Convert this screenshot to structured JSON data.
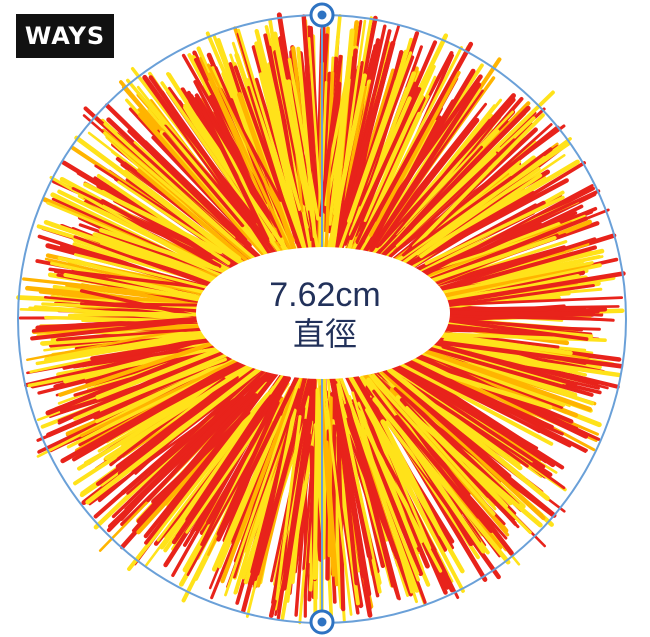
{
  "logo": {
    "text": "WAYS"
  },
  "measurement": {
    "value": "7.62cm",
    "caption": "直徑"
  },
  "colors": {
    "red": "#e8231b",
    "yellow": "#ffe21a",
    "orange": "#ffb400",
    "line": "#5e9ad6",
    "text": "#22315a"
  },
  "icons": {
    "handle": "circle-handle-icon",
    "bulb": "lightbulb-icon"
  }
}
